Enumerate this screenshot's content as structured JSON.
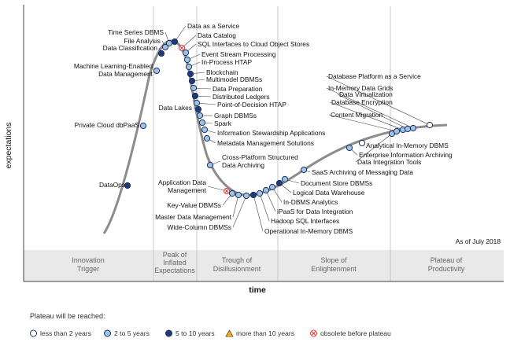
{
  "axes": {
    "y_title": "expectations",
    "x_title": "time"
  },
  "as_of": "As of July 2018",
  "phases": [
    {
      "lines": [
        "Innovation",
        "Trigger"
      ]
    },
    {
      "lines": [
        "Peak of",
        "Inflated",
        "Expectations"
      ]
    },
    {
      "lines": [
        "Trough of",
        "Disillusionment"
      ]
    },
    {
      "lines": [
        "Slope of",
        "Enlightenment"
      ]
    },
    {
      "lines": [
        "Plateau of",
        "Productivity"
      ]
    }
  ],
  "legend": {
    "title": "Plateau will be reached:",
    "items": [
      {
        "key": "lt2",
        "label": "less than 2 years",
        "color": "#ffffff"
      },
      {
        "key": "2to5",
        "label": "2 to 5 years",
        "color": "#9dc3e6"
      },
      {
        "key": "5to10",
        "label": "5 to 10 years",
        "color": "#1f3a7a"
      },
      {
        "key": "gt10",
        "label": "more than 10 years",
        "color": "#f2b134"
      },
      {
        "key": "obsolete",
        "label": "obsolete before plateau",
        "color": "#e03b3b"
      }
    ]
  },
  "technologies": [
    {
      "label": "DataOps",
      "category": "5to10"
    },
    {
      "label": "Private Cloud dbPaaS",
      "category": "2to5"
    },
    {
      "label": "Machine Learning-Enabled Data Management",
      "category": "2to5"
    },
    {
      "label": "Data Classification",
      "category": "5to10"
    },
    {
      "label": "File Analysis",
      "category": "2to5"
    },
    {
      "label": "Time Series DBMS",
      "category": "2to5"
    },
    {
      "label": "Data as a Service",
      "category": "5to10"
    },
    {
      "label": "Data Catalog",
      "category": "obsolete"
    },
    {
      "label": "SQL Interfaces to Cloud Object Stores",
      "category": "2to5"
    },
    {
      "label": "Event Stream Processing",
      "category": "2to5"
    },
    {
      "label": "In-Process HTAP",
      "category": "2to5"
    },
    {
      "label": "Blockchain",
      "category": "5to10"
    },
    {
      "label": "Multimodel DBMSs",
      "category": "5to10"
    },
    {
      "label": "Data Preparation",
      "category": "2to5"
    },
    {
      "label": "Distributed Ledgers",
      "category": "5to10"
    },
    {
      "label": "Point-of-Decision HTAP",
      "category": "2to5"
    },
    {
      "label": "Data Lakes",
      "category": "5to10"
    },
    {
      "label": "Graph DBMSs",
      "category": "2to5"
    },
    {
      "label": "Spark",
      "category": "2to5"
    },
    {
      "label": "Information Stewardship Applications",
      "category": "2to5"
    },
    {
      "label": "Metadata Management Solutions",
      "category": "2to5"
    },
    {
      "label": "Cross-Platform Structured Data Archiving",
      "category": "2to5"
    },
    {
      "label": "Application Data Management",
      "category": "obsolete"
    },
    {
      "label": "Key-Value DBMSs",
      "category": "2to5"
    },
    {
      "label": "Master Data Management",
      "category": "2to5"
    },
    {
      "label": "Wide-Column DBMSs",
      "category": "2to5"
    },
    {
      "label": "Operational In-Memory DBMS",
      "category": "5to10"
    },
    {
      "label": "Hadoop SQL Interfaces",
      "category": "2to5"
    },
    {
      "label": "iPaaS for Data Integration",
      "category": "2to5"
    },
    {
      "label": "In-DBMS Analytics",
      "category": "2to5"
    },
    {
      "label": "Logical Data Warehouse",
      "category": "5to10"
    },
    {
      "label": "Document Store DBMSs",
      "category": "2to5"
    },
    {
      "label": "SaaS Archiving of Messaging Data",
      "category": "2to5"
    },
    {
      "label": "Enterprise Information Archiving",
      "category": "2to5"
    },
    {
      "label": "Analytical In-Memory DBMS",
      "category": "lt2"
    },
    {
      "label": "Data Integration Tools",
      "category": "2to5"
    },
    {
      "label": "Content Migration",
      "category": "2to5"
    },
    {
      "label": "Database Encryption",
      "category": "2to5"
    },
    {
      "label": "Data Virtualization",
      "category": "2to5"
    },
    {
      "label": "In-Memory Data Grids",
      "category": "2to5"
    },
    {
      "label": "Database Platform as a Service",
      "category": "lt2"
    }
  ]
}
